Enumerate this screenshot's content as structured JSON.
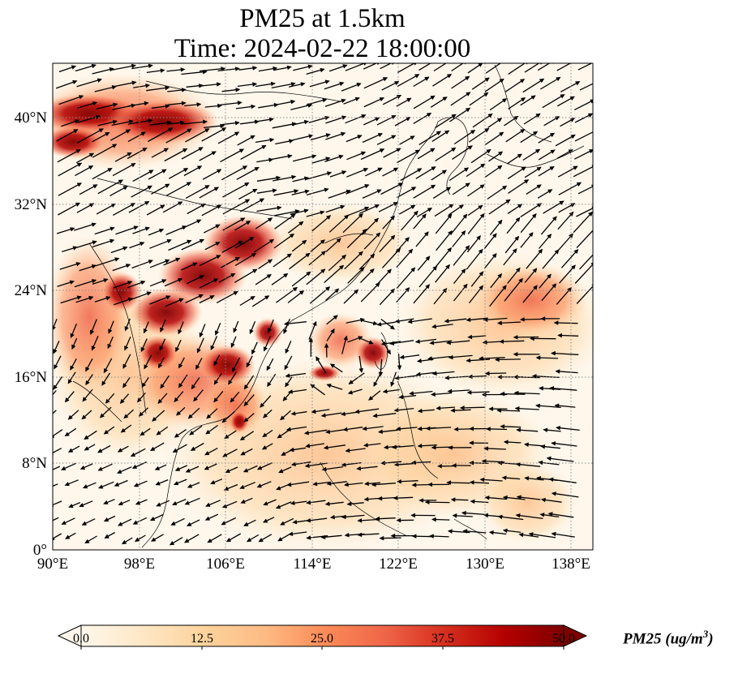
{
  "title": {
    "line1": "PM25 at 1.5km",
    "line2": "Time: 2024-02-22 18:00:00"
  },
  "map": {
    "lon_ticks": [
      "90°E",
      "98°E",
      "106°E",
      "114°E",
      "122°E",
      "130°E",
      "138°E"
    ],
    "lat_ticks": [
      "0°",
      "8°N",
      "16°N",
      "24°N",
      "32°N",
      "40°N"
    ],
    "lon_range": [
      90,
      140
    ],
    "lat_range": [
      0,
      45
    ],
    "gridlines": "dotted",
    "field": "PM25",
    "wind_vectors": true,
    "high_concentration_regions": [
      "Northern China 38-42°N",
      "Southwest China / Sichuan 22-30°N",
      "Indochina 14-22°N",
      "Taiwan Strait near 18°N 119°E"
    ]
  },
  "colorbar": {
    "ticks": [
      "0.0",
      "12.5",
      "25.0",
      "37.5",
      "50.0"
    ],
    "min": 0.0,
    "max": 50.0,
    "extend": "both",
    "colormap": "OrRd",
    "label_main": "PM25 (ug/m",
    "label_sup": "3",
    "label_close": ")",
    "colors": [
      "#fff7ec",
      "#fee8c8",
      "#fdd49e",
      "#fdbb84",
      "#fc8d59",
      "#ef6548",
      "#d7301f",
      "#b30000",
      "#7f0000"
    ]
  }
}
